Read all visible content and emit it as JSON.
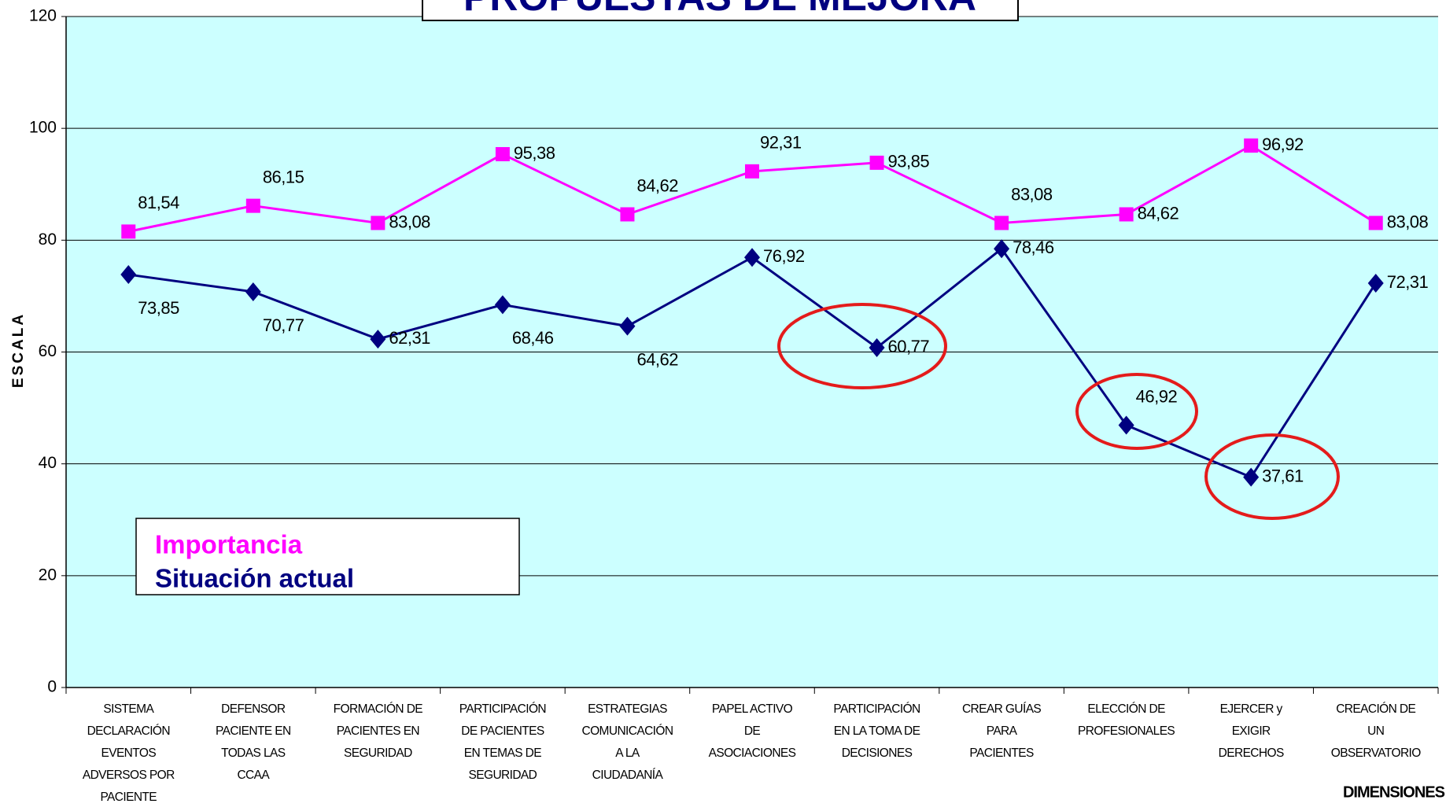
{
  "chart_data": {
    "type": "line",
    "title": "PROPUESTAS DE MEJORA",
    "y_label": "ESCALA",
    "x_label": "DIMENSIONES",
    "categories": [
      "SISTEMA\nDECLARACIÓN\nEVENTOS\nADVERSOS POR\nPACIENTE",
      "DEFENSOR\nPACIENTE EN\nTODAS LAS\nCCAA",
      "FORMACIÓN DE\nPACIENTES EN\nSEGURIDAD",
      "PARTICIPACIÓN\nDE PACIENTES\nEN TEMAS DE\nSEGURIDAD",
      "ESTRATEGIAS\nCOMUNICACIÓN\nA LA\nCIUDADANÍA",
      "PAPEL ACTIVO\nDE\nASOCIACIONES",
      "PARTICIPACIÓN\nEN LA TOMA DE\nDECISIONES",
      "CREAR GUÍAS\nPARA\nPACIENTES",
      "ELECCIÓN DE\nPROFESIONALES",
      "EJERCER  y\nEXIGIR\nDERECHOS",
      "CREACIÓN DE\nUN\nOBSERVATORIO"
    ],
    "series": [
      {
        "name": "Importancia",
        "color": "#ff00ff",
        "marker": "square",
        "values": [
          81.54,
          86.15,
          83.08,
          95.38,
          84.62,
          92.31,
          93.85,
          83.08,
          84.62,
          96.92,
          83.08
        ],
        "value_labels": [
          "81,54",
          "86,15",
          "83,08",
          "95,38",
          "84,62",
          "92,31",
          "93,85",
          "83,08",
          "84,62",
          "96,92",
          "83,08"
        ]
      },
      {
        "name": "Situación actual",
        "color": "#000080",
        "marker": "diamond",
        "values": [
          73.85,
          70.77,
          62.31,
          68.46,
          64.62,
          76.92,
          60.77,
          78.46,
          46.92,
          37.61,
          72.31
        ],
        "value_labels": [
          "73,85",
          "70,77",
          "62,31",
          "68,46",
          "64,62",
          "76,92",
          "60,77",
          "78,46",
          "46,92",
          "37,61",
          "72,31"
        ]
      }
    ],
    "ylim": [
      0,
      120
    ],
    "yticks": [
      0,
      20,
      40,
      60,
      80,
      100,
      120
    ],
    "grid": true,
    "plot_background": "#ccffff"
  }
}
